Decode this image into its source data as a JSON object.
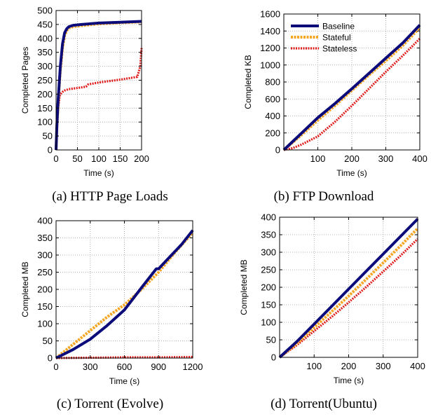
{
  "colors": {
    "baseline": "#0b0b7a",
    "stateful": "#f5a623",
    "stateless": "#e01d1d",
    "grid": "#9a9a9a"
  },
  "legend": [
    "Baseline",
    "Stateful",
    "Stateless"
  ],
  "chart_data": [
    {
      "type": "line",
      "caption": "(a) HTTP Page Loads",
      "xlabel": "Time (s)",
      "ylabel": "Completed Pages",
      "xlim": [
        0,
        200
      ],
      "ylim": [
        0,
        500
      ],
      "xticks": [
        0,
        50,
        100,
        150,
        200
      ],
      "yticks": [
        0,
        50,
        100,
        150,
        200,
        250,
        300,
        350,
        400,
        450,
        500
      ],
      "grid": true,
      "legend": false,
      "series": [
        {
          "key": "baseline",
          "x": [
            0,
            2,
            5,
            10,
            15,
            20,
            25,
            30,
            40,
            60,
            100,
            150,
            200
          ],
          "y": [
            0,
            90,
            180,
            300,
            380,
            420,
            435,
            442,
            447,
            450,
            455,
            458,
            461
          ]
        },
        {
          "key": "stateful",
          "x": [
            0,
            2,
            5,
            10,
            15,
            20,
            25,
            30,
            40,
            60,
            100,
            150,
            200
          ],
          "y": [
            0,
            80,
            170,
            285,
            365,
            410,
            428,
            437,
            442,
            446,
            452,
            456,
            459
          ]
        },
        {
          "key": "stateless",
          "x": [
            0,
            2,
            5,
            8,
            10,
            15,
            20,
            30,
            50,
            70,
            75,
            100,
            150,
            190,
            197,
            200
          ],
          "y": [
            0,
            70,
            150,
            190,
            200,
            208,
            213,
            218,
            222,
            227,
            235,
            242,
            252,
            262,
            300,
            365
          ]
        }
      ]
    },
    {
      "type": "line",
      "caption": "(b) FTP Download",
      "xlabel": "Time (s)",
      "ylabel": "Completed KB",
      "xlim": [
        0,
        400
      ],
      "ylim": [
        0,
        1600
      ],
      "xticks": [
        100,
        200,
        300,
        400
      ],
      "yticks": [
        0,
        200,
        400,
        600,
        800,
        1000,
        1200,
        1400,
        1600
      ],
      "grid": true,
      "legend": true,
      "legend_position": "top-right",
      "series": [
        {
          "key": "baseline",
          "x": [
            0,
            50,
            100,
            150,
            200,
            250,
            300,
            350,
            400
          ],
          "y": [
            0,
            190,
            380,
            545,
            720,
            900,
            1080,
            1260,
            1470
          ]
        },
        {
          "key": "stateful",
          "x": [
            0,
            50,
            100,
            150,
            200,
            250,
            300,
            350,
            400
          ],
          "y": [
            0,
            170,
            350,
            520,
            700,
            880,
            1050,
            1230,
            1440
          ]
        },
        {
          "key": "stateless",
          "x": [
            0,
            25,
            50,
            75,
            100,
            150,
            200,
            250,
            300,
            350,
            400
          ],
          "y": [
            0,
            20,
            60,
            110,
            160,
            330,
            520,
            720,
            920,
            1110,
            1310
          ]
        }
      ]
    },
    {
      "type": "line",
      "caption": "(c) Torrent (Evolve)",
      "xlabel": "Time (s)",
      "ylabel": "Completed MB",
      "xlim": [
        0,
        1200
      ],
      "ylim": [
        0,
        400
      ],
      "xticks": [
        0,
        300,
        600,
        900,
        1200
      ],
      "yticks": [
        0,
        50,
        100,
        150,
        200,
        250,
        300,
        350,
        400
      ],
      "grid": true,
      "legend": false,
      "series": [
        {
          "key": "baseline",
          "x": [
            0,
            150,
            300,
            450,
            600,
            750,
            880,
            900,
            1000,
            1100,
            1200
          ],
          "y": [
            0,
            25,
            55,
            95,
            140,
            205,
            260,
            260,
            295,
            330,
            372
          ]
        },
        {
          "key": "stateful",
          "x": [
            0,
            150,
            300,
            450,
            600,
            750,
            900,
            1050,
            1200
          ],
          "y": [
            0,
            40,
            80,
            120,
            155,
            200,
            250,
            310,
            365
          ]
        },
        {
          "key": "stateless",
          "x": [
            0,
            300,
            600,
            900,
            1200
          ],
          "y": [
            0,
            1,
            2,
            2,
            3
          ]
        }
      ]
    },
    {
      "type": "line",
      "caption": "(d) Torrent(Ubuntu)",
      "xlabel": "Time (s)",
      "ylabel": "Completed MB",
      "xlim": [
        0,
        400
      ],
      "ylim": [
        0,
        400
      ],
      "xticks": [
        100,
        200,
        300,
        400
      ],
      "yticks": [
        0,
        50,
        100,
        150,
        200,
        250,
        300,
        350,
        400
      ],
      "grid": true,
      "legend": false,
      "series": [
        {
          "key": "baseline",
          "x": [
            0,
            50,
            100,
            150,
            200,
            250,
            300,
            350,
            400
          ],
          "y": [
            0,
            45,
            95,
            145,
            195,
            245,
            295,
            345,
            395
          ]
        },
        {
          "key": "stateful",
          "x": [
            0,
            50,
            100,
            150,
            200,
            250,
            300,
            350,
            400
          ],
          "y": [
            0,
            40,
            85,
            130,
            175,
            222,
            270,
            318,
            368
          ]
        },
        {
          "key": "stateless",
          "x": [
            0,
            50,
            100,
            150,
            200,
            250,
            300,
            350,
            400
          ],
          "y": [
            0,
            35,
            75,
            115,
            157,
            200,
            245,
            290,
            338
          ]
        }
      ]
    }
  ]
}
